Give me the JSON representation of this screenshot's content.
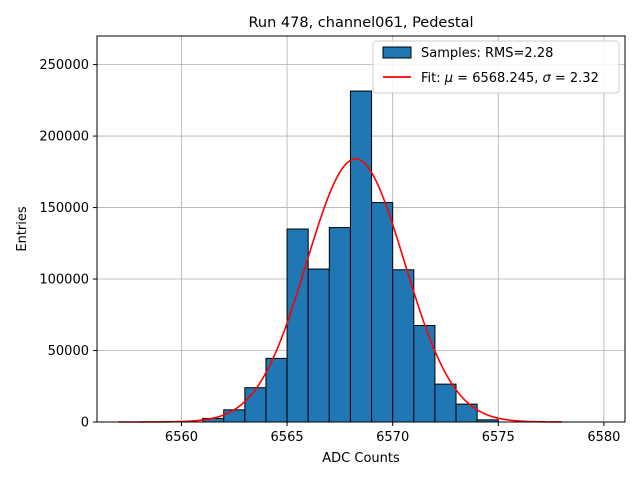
{
  "chart_data": {
    "type": "bar",
    "title": "Run 478, channel061, Pedestal",
    "xlabel": "ADC Counts",
    "ylabel": "Entries",
    "xlim": [
      6556,
      6581
    ],
    "ylim": [
      0,
      270000
    ],
    "xticks": [
      6560,
      6565,
      6570,
      6575,
      6580
    ],
    "yticks": [
      0,
      50000,
      100000,
      150000,
      200000,
      250000
    ],
    "grid": true,
    "legend_position": "top-right",
    "bin_edges": [
      6561,
      6562,
      6563,
      6564,
      6565,
      6566,
      6567,
      6568,
      6569,
      6570,
      6571,
      6572,
      6573,
      6574,
      6575
    ],
    "counts": [
      2500,
      8500,
      24000,
      44500,
      135000,
      107000,
      136000,
      231500,
      153500,
      106500,
      67500,
      26500,
      12500,
      1500
    ],
    "bar_color": "#1f77b4",
    "fit": {
      "mu": 6568.245,
      "sigma": 2.32,
      "amplitude": 184000,
      "x_range": [
        6557,
        6578
      ],
      "color": "#ff0000"
    },
    "legend": [
      {
        "label": "Samples: RMS=2.28",
        "kind": "patch"
      },
      {
        "label_prefix": "Fit: ",
        "mu_symbol": "μ",
        "mu_text": " = 6568.245, ",
        "sigma_symbol": "σ",
        "sigma_text": " = 2.32",
        "kind": "line"
      }
    ]
  }
}
